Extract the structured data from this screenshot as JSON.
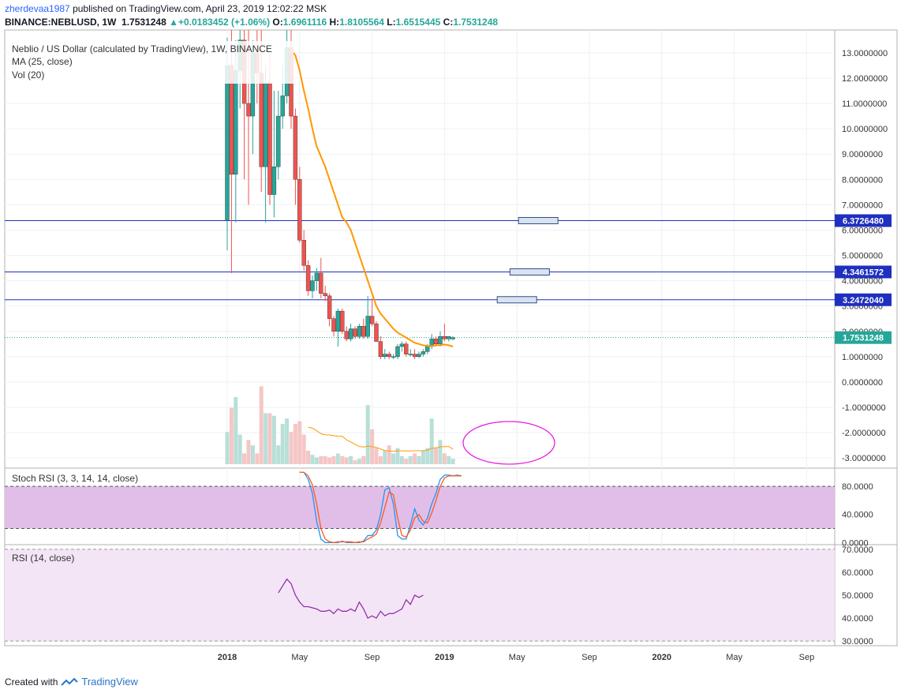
{
  "header": {
    "user": "zherdevaa1987",
    "published_text": "published on TradingView.com, April 23, 2019 12:02:22 MSK",
    "symbol": "BINANCE:NEBLUSD, 1W",
    "last": "1.7531248",
    "change": "+0.0183452 (+1.06%)",
    "o_label": "O:",
    "o": "1.6961116",
    "h_label": "H:",
    "h": "1.8105564",
    "l_label": "L:",
    "l": "1.6515445",
    "c_label": "C:",
    "c": "1.7531248"
  },
  "footer": {
    "created_with": "Created with",
    "brand": "TradingView"
  },
  "colors": {
    "up": "#26a69a",
    "down": "#ef5350",
    "ma": "#ff9800",
    "hline": "#1f2fbf",
    "stoch_k": "#2196f3",
    "stoch_d": "#ff5722",
    "rsi": "#8e24aa",
    "stoch_band": "#e1bee7",
    "rsi_band": "#f3e5f5",
    "ellipse": "#e91ee2"
  },
  "chart_data": [
    {
      "type": "candlestick",
      "title": "Neblio / US Dollar (calculated by TradingView), 1W, BINANCE",
      "legend": [
        "MA (25, close)",
        "Vol (20)"
      ],
      "ylim": [
        -3.4,
        13.9
      ],
      "price_ticks": [
        "13.0000000",
        "12.0000000",
        "11.0000000",
        "10.0000000",
        "9.0000000",
        "8.0000000",
        "7.0000000",
        "6.0000000",
        "5.0000000",
        "4.0000000",
        "3.0000000",
        "2.0000000",
        "1.0000000",
        "0.0000000",
        "-1.0000000",
        "-2.0000000",
        "-3.0000000"
      ],
      "price_tick_values": [
        13,
        12,
        11,
        10,
        9,
        8,
        7,
        6,
        5,
        4,
        3,
        2,
        1,
        0,
        -1,
        -2,
        -3
      ],
      "x_ticks": [
        "2018",
        "May",
        "Sep",
        "2019",
        "May",
        "Sep",
        "2020",
        "May",
        "Sep"
      ],
      "x_tick_weeks": [
        0,
        17,
        34,
        51,
        68,
        85,
        102,
        119,
        136
      ],
      "horizontal_levels": [
        {
          "value": 6.372648,
          "label": "6.3726480"
        },
        {
          "value": 4.3461572,
          "label": "4.3461572"
        },
        {
          "value": 3.247204,
          "label": "3.2472040"
        }
      ],
      "last_price": {
        "value": 1.7531248,
        "label": "1.7531248"
      },
      "candles": [
        [
          6.4,
          13.6,
          5.2,
          12.5
        ],
        [
          12.5,
          13.9,
          4.3,
          8.2
        ],
        [
          8.2,
          13.5,
          6.3,
          12.3
        ],
        [
          12.3,
          13.9,
          10.8,
          13.5
        ],
        [
          13.5,
          13.9,
          8.0,
          11.0
        ],
        [
          11.0,
          13.9,
          7.0,
          10.5
        ],
        [
          10.5,
          13.5,
          9.0,
          13.0
        ],
        [
          13.0,
          13.9,
          11.0,
          12.2
        ],
        [
          12.2,
          13.9,
          7.5,
          8.5
        ],
        [
          8.5,
          12.5,
          6.3,
          11.8
        ],
        [
          11.8,
          13.0,
          7.0,
          7.4
        ],
        [
          7.4,
          11.5,
          6.5,
          8.5
        ],
        [
          8.5,
          11.5,
          8.0,
          10.5
        ],
        [
          10.5,
          12.5,
          10.0,
          11.3
        ],
        [
          11.3,
          13.9,
          11.0,
          13.2
        ],
        [
          13.2,
          13.9,
          10.0,
          10.5
        ],
        [
          10.5,
          10.8,
          7.0,
          8.0
        ],
        [
          8.0,
          8.5,
          5.5,
          5.6
        ],
        [
          5.6,
          6.0,
          4.4,
          4.6
        ],
        [
          4.6,
          4.8,
          3.4,
          3.6
        ],
        [
          3.6,
          4.2,
          3.3,
          4.0
        ],
        [
          4.0,
          4.5,
          3.6,
          4.3
        ],
        [
          4.3,
          4.9,
          3.3,
          3.5
        ],
        [
          3.5,
          3.8,
          3.2,
          3.4
        ],
        [
          3.4,
          3.5,
          2.2,
          2.5
        ],
        [
          2.5,
          2.6,
          1.8,
          2.0
        ],
        [
          2.0,
          2.9,
          1.4,
          2.8
        ],
        [
          2.8,
          2.9,
          1.9,
          2.0
        ],
        [
          2.0,
          2.2,
          1.6,
          1.7
        ],
        [
          1.7,
          2.3,
          1.6,
          2.1
        ],
        [
          2.1,
          2.2,
          1.7,
          1.8
        ],
        [
          1.8,
          2.3,
          1.7,
          2.2
        ],
        [
          2.2,
          2.5,
          1.7,
          1.8
        ],
        [
          1.8,
          3.4,
          1.7,
          2.6
        ],
        [
          2.6,
          3.3,
          2.2,
          2.3
        ],
        [
          2.3,
          2.4,
          1.6,
          1.6
        ],
        [
          1.6,
          1.8,
          0.9,
          1.0
        ],
        [
          1.0,
          1.3,
          0.9,
          1.1
        ],
        [
          1.1,
          1.2,
          0.9,
          1.0
        ],
        [
          1.0,
          1.1,
          0.9,
          1.0
        ],
        [
          1.0,
          1.5,
          0.9,
          1.4
        ],
        [
          1.4,
          1.6,
          1.2,
          1.5
        ],
        [
          1.5,
          1.6,
          1.0,
          1.1
        ],
        [
          1.1,
          1.3,
          1.0,
          1.1
        ],
        [
          1.1,
          1.3,
          0.9,
          1.0
        ],
        [
          1.0,
          1.2,
          0.95,
          1.1
        ],
        [
          1.1,
          1.3,
          1.0,
          1.2
        ],
        [
          1.2,
          1.5,
          1.1,
          1.4
        ],
        [
          1.4,
          1.9,
          1.3,
          1.7
        ],
        [
          1.7,
          1.8,
          1.4,
          1.5
        ],
        [
          1.5,
          2.0,
          1.4,
          1.8
        ],
        [
          1.8,
          2.3,
          1.6,
          1.7
        ],
        [
          1.7,
          1.8,
          1.6,
          1.8
        ],
        [
          1.7,
          1.81,
          1.65,
          1.75
        ]
      ],
      "ma25": [
        null,
        null,
        null,
        null,
        null,
        null,
        null,
        null,
        null,
        null,
        null,
        null,
        null,
        null,
        null,
        13.1,
        12.9,
        12.3,
        11.5,
        10.8,
        10.0,
        9.3,
        8.9,
        8.5,
        8.0,
        7.5,
        7.0,
        6.5,
        6.3,
        6.0,
        5.5,
        5.0,
        4.5,
        4.0,
        3.5,
        3.0,
        2.7,
        2.5,
        2.3,
        2.1,
        1.95,
        1.85,
        1.75,
        1.65,
        1.55,
        1.5,
        1.45,
        1.42,
        1.42,
        1.45,
        1.45,
        1.48,
        1.45,
        1.4
      ],
      "volume": [
        0.3,
        1.7,
        3.0,
        0.9,
        0.4,
        0.8,
        0.6,
        0.4,
        1.6,
        0.8,
        0.7,
        1.3,
        0.4,
        0.5,
        1.1,
        0.9,
        0.8,
        0.6,
        0.4,
        0.3,
        0.35,
        0.25,
        0.2,
        0.3,
        0.25,
        0.2,
        0.4,
        0.3,
        0.25,
        0.3,
        0.15,
        0.2,
        0.3,
        2.2,
        1.3,
        0.6,
        0.3,
        0.5,
        0.7,
        0.4,
        0.6,
        0.3,
        0.2,
        0.3,
        0.4,
        0.3,
        0.5,
        0.6,
        1.7,
        0.6,
        0.9,
        0.4,
        0.3,
        0.2
      ],
      "volume_tall": [
        1.2,
        2.1,
        2.5,
        1.1,
        0.4,
        0.9,
        0.7,
        0.4,
        2.9,
        1.9,
        1.9,
        1.8,
        0.7,
        1.5,
        1.7,
        1.2,
        1.5,
        1.6,
        1.1,
        0.5,
        0.35,
        0.25,
        0.3,
        0.3,
        0.25,
        0.3,
        0.4,
        0.3,
        0.25,
        0.3,
        0.15,
        0.2,
        0.3,
        2.2,
        1.3,
        0.6,
        0.3,
        0.5,
        0.7,
        0.4,
        0.6,
        0.3,
        0.2,
        0.3,
        0.4,
        0.3,
        0.5,
        0.6,
        1.7,
        0.6,
        0.9,
        0.4,
        0.3,
        0.2
      ]
    },
    {
      "type": "line",
      "title": "Stoch RSI (3, 3, 14, 14, close)",
      "ylim": [
        -3,
        106
      ],
      "y_ticks": [
        "80.0000",
        "40.0000",
        "0.0000"
      ],
      "y_tick_values": [
        80,
        40,
        0
      ],
      "bands": [
        20,
        80
      ],
      "start_week": 17,
      "k": [
        100,
        100,
        90,
        70,
        30,
        5,
        0,
        0,
        0,
        0,
        2,
        0,
        0,
        0,
        0,
        2,
        10,
        10,
        18,
        40,
        75,
        78,
        55,
        10,
        5,
        5,
        25,
        48,
        32,
        25,
        35,
        55,
        70,
        90,
        96,
        96,
        95,
        96,
        95
      ],
      "d": [
        100,
        100,
        95,
        82,
        55,
        20,
        5,
        1,
        0,
        1,
        1,
        1,
        1,
        0,
        1,
        1,
        5,
        8,
        12,
        28,
        50,
        72,
        68,
        35,
        10,
        8,
        18,
        35,
        40,
        30,
        28,
        42,
        60,
        80,
        92,
        95,
        95,
        95,
        95
      ]
    },
    {
      "type": "line",
      "title": "RSI (14, close)",
      "ylim": [
        28,
        72
      ],
      "y_ticks": [
        "70.0000",
        "60.0000",
        "50.0000",
        "40.0000",
        "30.0000"
      ],
      "y_tick_values": [
        70,
        60,
        50,
        40,
        30
      ],
      "bands": [
        30,
        70
      ],
      "start_week": 12,
      "values": [
        51,
        54,
        57,
        55,
        50,
        47,
        45,
        45,
        44.5,
        44,
        43,
        43,
        43.5,
        42,
        44,
        43,
        43,
        44,
        43,
        47,
        44,
        40,
        41,
        40,
        43,
        41,
        42,
        42,
        43,
        44,
        48,
        46,
        50,
        49,
        50
      ]
    }
  ]
}
